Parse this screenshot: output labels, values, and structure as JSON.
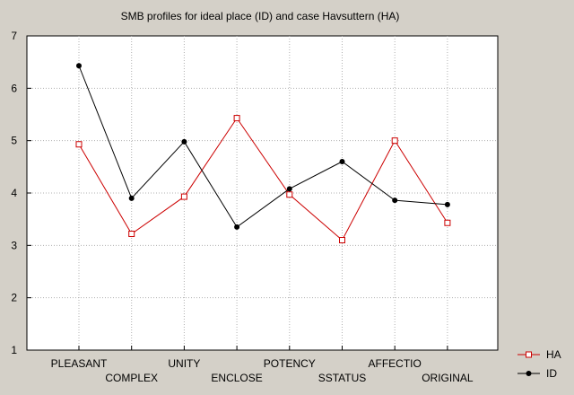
{
  "chart_data": {
    "type": "line",
    "title": "SMB profiles for ideal place (ID) and case Havsuttern (HA)",
    "categories": [
      "PLEASANT",
      "COMPLEX",
      "UNITY",
      "ENCLOSE",
      "POTENCY",
      "SSTATUS",
      "AFFECTIO",
      "ORIGINAL"
    ],
    "ylim": [
      1,
      7
    ],
    "yticks": [
      1,
      2,
      3,
      4,
      5,
      6,
      7
    ],
    "grid": true,
    "legend_position": "bottom-right",
    "series": [
      {
        "name": "HA",
        "color": "#cc0000",
        "marker": "square-open",
        "values": [
          4.93,
          3.22,
          3.93,
          5.43,
          3.97,
          3.1,
          5.0,
          3.43
        ]
      },
      {
        "name": "ID",
        "color": "#000000",
        "marker": "circle-filled",
        "values": [
          6.43,
          3.9,
          4.98,
          3.35,
          4.08,
          4.6,
          3.86,
          3.78
        ]
      }
    ]
  }
}
